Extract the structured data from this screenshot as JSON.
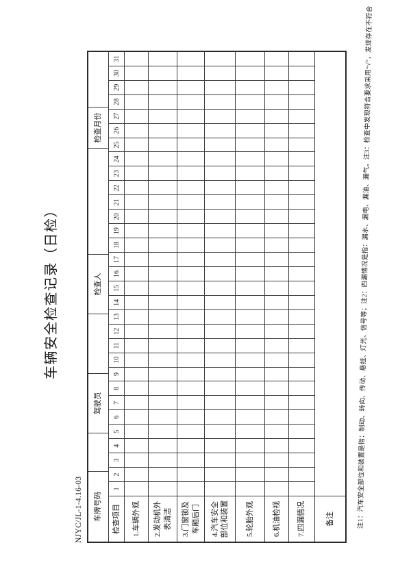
{
  "page": {
    "title": "车辆安全检查记录（日检）",
    "doc_code": "NJYC/JL-1-4.16-03",
    "footnote": "注1：汽车安全部位和装置是指：制动、转向、传动、悬挂、灯光、信号等；注2：四漏情况是指：漏水、漏电、漏油、漏气。注3：检查中发现符合要求采用“√”，发现存在不符合"
  },
  "table": {
    "header_row": {
      "plate_label": "车牌号码",
      "driver_label": "驾驶员",
      "inspector_label": "检查人",
      "month_label": "检查月份"
    },
    "items_header": "检查项目",
    "days": [
      1,
      2,
      3,
      4,
      5,
      6,
      7,
      8,
      9,
      10,
      11,
      12,
      13,
      14,
      15,
      16,
      17,
      18,
      19,
      20,
      21,
      22,
      23,
      24,
      25,
      26,
      27,
      28,
      29,
      30,
      31
    ],
    "items": [
      "1.车辆外观",
      "2.发动机外表清洁",
      "3.门窗锁及车厢后门",
      "4.汽车安全部位和装置",
      "5.轮胎外观",
      "6.机油检视",
      "7.四漏情况"
    ],
    "item_row_heights": [
      35,
      42,
      40,
      45,
      43,
      35,
      38
    ],
    "remarks_label": "备注"
  }
}
